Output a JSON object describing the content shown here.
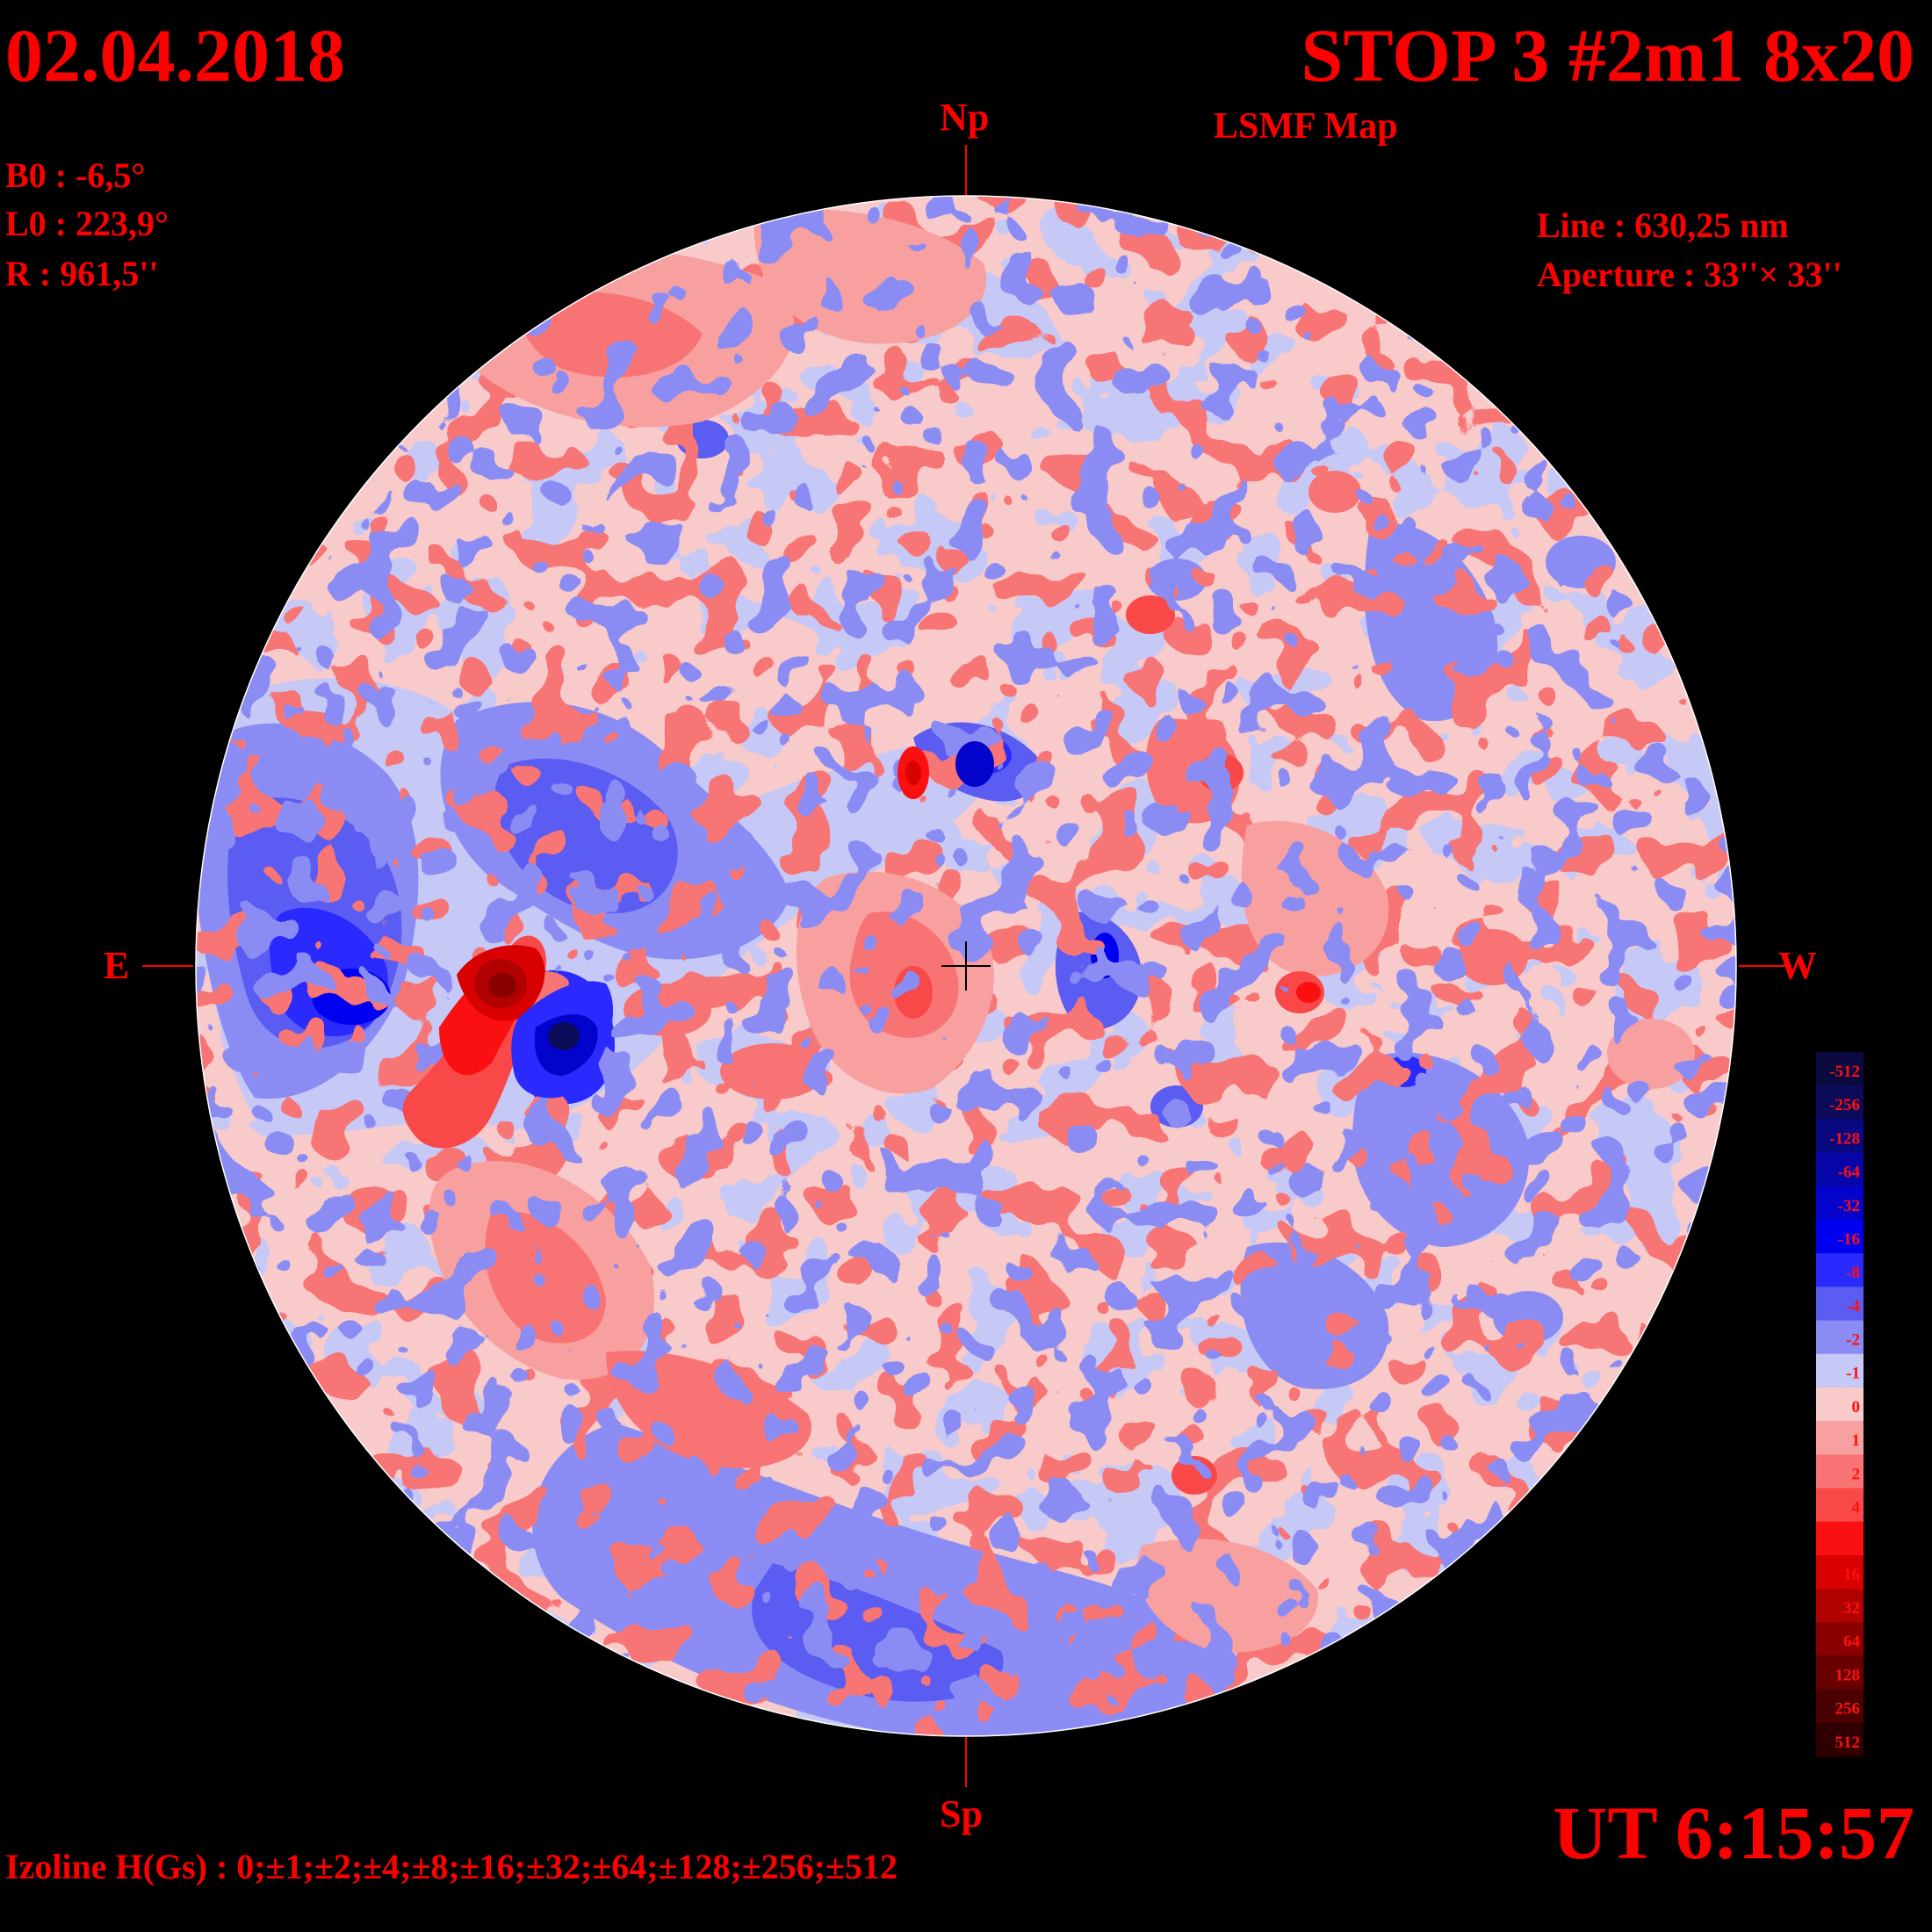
{
  "header": {
    "date": "02.04.2018",
    "title": "STOP 3 #2m1 8x20",
    "subtitle": "LSMF  Map"
  },
  "params_left": {
    "b0": "B0 : -6,5°",
    "l0": "L0 : 223,9°",
    "r": "R  : 961,5''"
  },
  "params_right": {
    "line": "Line :  630,25 nm",
    "aperture": "Aperture : 33''× 33''"
  },
  "directions": {
    "north": "Np",
    "south": "Sp",
    "east": "E",
    "west": "W"
  },
  "time": "UT 6:15:57",
  "izoline": "Izoline H(Gs) : 0;±1;±2;±4;±8;±16;±32;±64;±128;±256;±512",
  "colorbar": {
    "levels": [
      {
        "label": "-512",
        "color": "#0a0a40"
      },
      {
        "label": "-256",
        "color": "#0b0b5a"
      },
      {
        "label": "-128",
        "color": "#080880"
      },
      {
        "label": "-64",
        "color": "#0606a8"
      },
      {
        "label": "-32",
        "color": "#0303cc"
      },
      {
        "label": "-16",
        "color": "#0000f0"
      },
      {
        "label": "-8",
        "color": "#2a2aff"
      },
      {
        "label": "-4",
        "color": "#5a5cf2"
      },
      {
        "label": "-2",
        "color": "#8a8cf4"
      },
      {
        "label": "-1",
        "color": "#c6c8f6"
      },
      {
        "label": "0",
        "color": "#f8caca"
      },
      {
        "label": "1",
        "color": "#f8a0a0"
      },
      {
        "label": "2",
        "color": "#f87474"
      },
      {
        "label": "4",
        "color": "#f84848"
      },
      {
        "label": "8",
        "color": "#fa1010"
      },
      {
        "label": "16",
        "color": "#d80000"
      },
      {
        "label": "32",
        "color": "#b00000"
      },
      {
        "label": "64",
        "color": "#8a0000"
      },
      {
        "label": "128",
        "color": "#680000"
      },
      {
        "label": "256",
        "color": "#4a0000"
      },
      {
        "label": "512",
        "color": "#300000"
      }
    ]
  }
}
